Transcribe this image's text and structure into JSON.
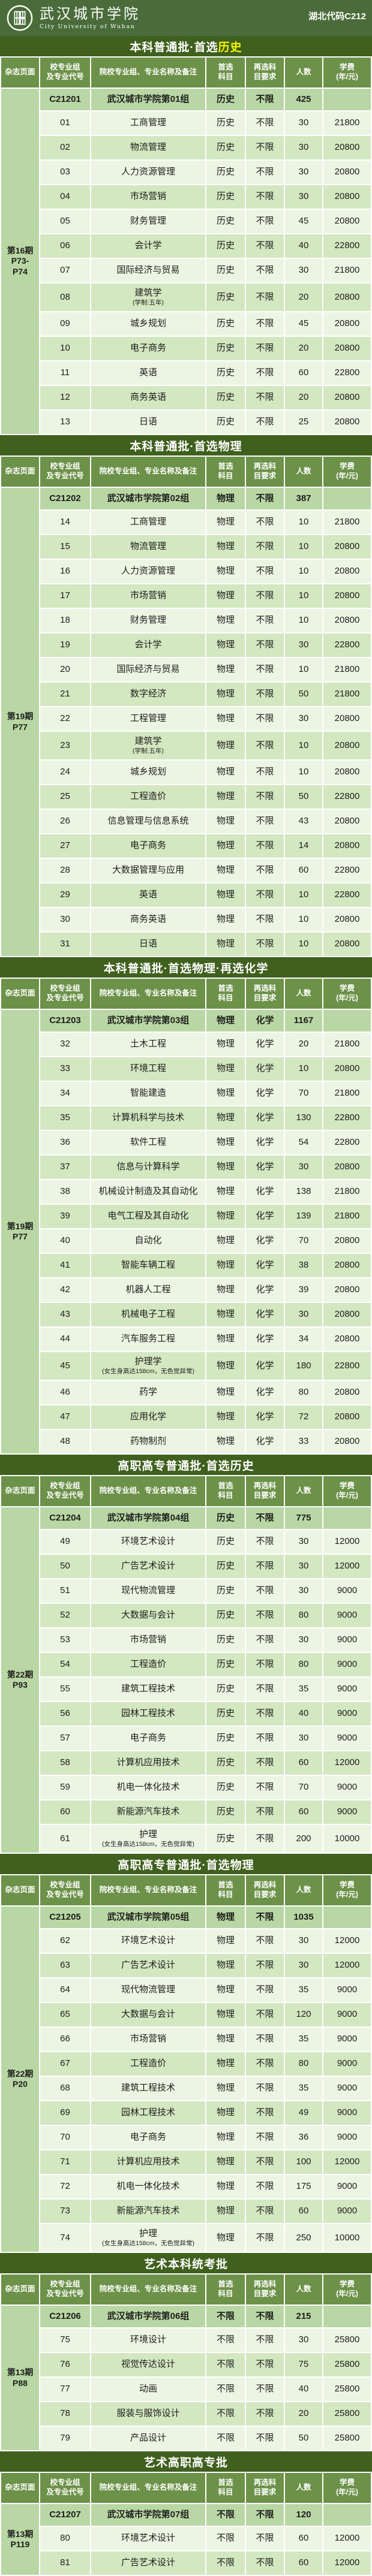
{
  "colors": {
    "banner": "#4a6c3a",
    "section_bar": "#40601e",
    "table_header": "#6c9148",
    "group_row": "#b9d7a4",
    "row_light": "#ecf5e3",
    "row_dark": "#d3e7c1",
    "highlight": "#f5f500"
  },
  "header": {
    "university_cn": "武汉城市学院",
    "university_en": "City University of Wuhan",
    "province_code": "湖北代码C212"
  },
  "columns": {
    "magazine": "杂志页面",
    "group_code": "校专业组\n及专业代号",
    "major_name": "院校专业组、专业名称及备注",
    "first_subject": "首选\n科目",
    "second_subject": "再选科\n目要求",
    "count": "人数",
    "fee": "学费\n(年/元)"
  },
  "sections": [
    {
      "title": "本科普通批·首选",
      "title_highlight": "历史",
      "magazine": "第16期\nP73-\nP74",
      "group": {
        "code": "C21201",
        "name": "武汉城市学院第01组",
        "subject": "历史",
        "resubject": "不限",
        "count": "425",
        "fee": ""
      },
      "rows": [
        {
          "code": "01",
          "name": "工商管理",
          "note": "",
          "subject": "历史",
          "resubject": "不限",
          "count": "30",
          "fee": "21800"
        },
        {
          "code": "02",
          "name": "物流管理",
          "note": "",
          "subject": "历史",
          "resubject": "不限",
          "count": "30",
          "fee": "20800"
        },
        {
          "code": "03",
          "name": "人力资源管理",
          "note": "",
          "subject": "历史",
          "resubject": "不限",
          "count": "30",
          "fee": "20800"
        },
        {
          "code": "04",
          "name": "市场营销",
          "note": "",
          "subject": "历史",
          "resubject": "不限",
          "count": "30",
          "fee": "20800"
        },
        {
          "code": "05",
          "name": "财务管理",
          "note": "",
          "subject": "历史",
          "resubject": "不限",
          "count": "45",
          "fee": "20800"
        },
        {
          "code": "06",
          "name": "会计学",
          "note": "",
          "subject": "历史",
          "resubject": "不限",
          "count": "40",
          "fee": "22800"
        },
        {
          "code": "07",
          "name": "国际经济与贸易",
          "note": "",
          "subject": "历史",
          "resubject": "不限",
          "count": "30",
          "fee": "21800"
        },
        {
          "code": "08",
          "name": "建筑学",
          "note": "(学制:五年)",
          "subject": "历史",
          "resubject": "不限",
          "count": "20",
          "fee": "20800"
        },
        {
          "code": "09",
          "name": "城乡规划",
          "note": "",
          "subject": "历史",
          "resubject": "不限",
          "count": "45",
          "fee": "20800"
        },
        {
          "code": "10",
          "name": "电子商务",
          "note": "",
          "subject": "历史",
          "resubject": "不限",
          "count": "20",
          "fee": "20800"
        },
        {
          "code": "11",
          "name": "英语",
          "note": "",
          "subject": "历史",
          "resubject": "不限",
          "count": "60",
          "fee": "22800"
        },
        {
          "code": "12",
          "name": "商务英语",
          "note": "",
          "subject": "历史",
          "resubject": "不限",
          "count": "20",
          "fee": "20800"
        },
        {
          "code": "13",
          "name": "日语",
          "note": "",
          "subject": "历史",
          "resubject": "不限",
          "count": "25",
          "fee": "20800"
        }
      ]
    },
    {
      "title": "本科普通批·首选物理",
      "title_highlight": "",
      "magazine": "第19期\nP77",
      "group": {
        "code": "C21202",
        "name": "武汉城市学院第02组",
        "subject": "物理",
        "resubject": "不限",
        "count": "387",
        "fee": ""
      },
      "rows": [
        {
          "code": "14",
          "name": "工商管理",
          "note": "",
          "subject": "物理",
          "resubject": "不限",
          "count": "10",
          "fee": "21800"
        },
        {
          "code": "15",
          "name": "物流管理",
          "note": "",
          "subject": "物理",
          "resubject": "不限",
          "count": "10",
          "fee": "20800"
        },
        {
          "code": "16",
          "name": "人力资源管理",
          "note": "",
          "subject": "物理",
          "resubject": "不限",
          "count": "10",
          "fee": "20800"
        },
        {
          "code": "17",
          "name": "市场营销",
          "note": "",
          "subject": "物理",
          "resubject": "不限",
          "count": "10",
          "fee": "20800"
        },
        {
          "code": "18",
          "name": "财务管理",
          "note": "",
          "subject": "物理",
          "resubject": "不限",
          "count": "10",
          "fee": "20800"
        },
        {
          "code": "19",
          "name": "会计学",
          "note": "",
          "subject": "物理",
          "resubject": "不限",
          "count": "30",
          "fee": "22800"
        },
        {
          "code": "20",
          "name": "国际经济与贸易",
          "note": "",
          "subject": "物理",
          "resubject": "不限",
          "count": "10",
          "fee": "21800"
        },
        {
          "code": "21",
          "name": "数字经济",
          "note": "",
          "subject": "物理",
          "resubject": "不限",
          "count": "50",
          "fee": "21800"
        },
        {
          "code": "22",
          "name": "工程管理",
          "note": "",
          "subject": "物理",
          "resubject": "不限",
          "count": "30",
          "fee": "20800"
        },
        {
          "code": "23",
          "name": "建筑学",
          "note": "(学制:五年)",
          "subject": "物理",
          "resubject": "不限",
          "count": "10",
          "fee": "20800"
        },
        {
          "code": "24",
          "name": "城乡规划",
          "note": "",
          "subject": "物理",
          "resubject": "不限",
          "count": "10",
          "fee": "20800"
        },
        {
          "code": "25",
          "name": "工程造价",
          "note": "",
          "subject": "物理",
          "resubject": "不限",
          "count": "50",
          "fee": "22800"
        },
        {
          "code": "26",
          "name": "信息管理与信息系统",
          "note": "",
          "subject": "物理",
          "resubject": "不限",
          "count": "43",
          "fee": "20800"
        },
        {
          "code": "27",
          "name": "电子商务",
          "note": "",
          "subject": "物理",
          "resubject": "不限",
          "count": "14",
          "fee": "20800"
        },
        {
          "code": "28",
          "name": "大数据管理与应用",
          "note": "",
          "subject": "物理",
          "resubject": "不限",
          "count": "60",
          "fee": "22800"
        },
        {
          "code": "29",
          "name": "英语",
          "note": "",
          "subject": "物理",
          "resubject": "不限",
          "count": "10",
          "fee": "22800"
        },
        {
          "code": "30",
          "name": "商务英语",
          "note": "",
          "subject": "物理",
          "resubject": "不限",
          "count": "10",
          "fee": "20800"
        },
        {
          "code": "31",
          "name": "日语",
          "note": "",
          "subject": "物理",
          "resubject": "不限",
          "count": "10",
          "fee": "20800"
        }
      ]
    },
    {
      "title": "本科普通批·首选物理·再选化学",
      "title_highlight": "",
      "magazine": "第19期\nP77",
      "group": {
        "code": "C21203",
        "name": "武汉城市学院第03组",
        "subject": "物理",
        "resubject": "化学",
        "count": "1167",
        "fee": ""
      },
      "rows": [
        {
          "code": "32",
          "name": "土木工程",
          "note": "",
          "subject": "物理",
          "resubject": "化学",
          "count": "20",
          "fee": "21800"
        },
        {
          "code": "33",
          "name": "环境工程",
          "note": "",
          "subject": "物理",
          "resubject": "化学",
          "count": "10",
          "fee": "20800"
        },
        {
          "code": "34",
          "name": "智能建造",
          "note": "",
          "subject": "物理",
          "resubject": "化学",
          "count": "70",
          "fee": "21800"
        },
        {
          "code": "35",
          "name": "计算机科学与技术",
          "note": "",
          "subject": "物理",
          "resubject": "化学",
          "count": "130",
          "fee": "22800"
        },
        {
          "code": "36",
          "name": "软件工程",
          "note": "",
          "subject": "物理",
          "resubject": "化学",
          "count": "54",
          "fee": "22800"
        },
        {
          "code": "37",
          "name": "信息与计算科学",
          "note": "",
          "subject": "物理",
          "resubject": "化学",
          "count": "30",
          "fee": "20800"
        },
        {
          "code": "38",
          "name": "机械设计制造及其自动化",
          "note": "",
          "subject": "物理",
          "resubject": "化学",
          "count": "138",
          "fee": "21800"
        },
        {
          "code": "39",
          "name": "电气工程及其自动化",
          "note": "",
          "subject": "物理",
          "resubject": "化学",
          "count": "139",
          "fee": "21800"
        },
        {
          "code": "40",
          "name": "自动化",
          "note": "",
          "subject": "物理",
          "resubject": "化学",
          "count": "70",
          "fee": "20800"
        },
        {
          "code": "41",
          "name": "智能车辆工程",
          "note": "",
          "subject": "物理",
          "resubject": "化学",
          "count": "38",
          "fee": "20800"
        },
        {
          "code": "42",
          "name": "机器人工程",
          "note": "",
          "subject": "物理",
          "resubject": "化学",
          "count": "39",
          "fee": "20800"
        },
        {
          "code": "43",
          "name": "机械电子工程",
          "note": "",
          "subject": "物理",
          "resubject": "化学",
          "count": "30",
          "fee": "20800"
        },
        {
          "code": "44",
          "name": "汽车服务工程",
          "note": "",
          "subject": "物理",
          "resubject": "化学",
          "count": "34",
          "fee": "20800"
        },
        {
          "code": "45",
          "name": "护理学",
          "note": "(女生身高达158cm，无色觉异常)",
          "subject": "物理",
          "resubject": "化学",
          "count": "180",
          "fee": "22800"
        },
        {
          "code": "46",
          "name": "药学",
          "note": "",
          "subject": "物理",
          "resubject": "化学",
          "count": "80",
          "fee": "20800"
        },
        {
          "code": "47",
          "name": "应用化学",
          "note": "",
          "subject": "物理",
          "resubject": "化学",
          "count": "72",
          "fee": "20800"
        },
        {
          "code": "48",
          "name": "药物制剂",
          "note": "",
          "subject": "物理",
          "resubject": "化学",
          "count": "33",
          "fee": "20800"
        }
      ]
    },
    {
      "title": "高职高专普通批·首选历史",
      "title_highlight": "",
      "magazine": "第22期\nP93",
      "group": {
        "code": "C21204",
        "name": "武汉城市学院第04组",
        "subject": "历史",
        "resubject": "不限",
        "count": "775",
        "fee": ""
      },
      "rows": [
        {
          "code": "49",
          "name": "环境艺术设计",
          "note": "",
          "subject": "历史",
          "resubject": "不限",
          "count": "30",
          "fee": "12000"
        },
        {
          "code": "50",
          "name": "广告艺术设计",
          "note": "",
          "subject": "历史",
          "resubject": "不限",
          "count": "30",
          "fee": "12000"
        },
        {
          "code": "51",
          "name": "现代物流管理",
          "note": "",
          "subject": "历史",
          "resubject": "不限",
          "count": "30",
          "fee": "9000"
        },
        {
          "code": "52",
          "name": "大数据与会计",
          "note": "",
          "subject": "历史",
          "resubject": "不限",
          "count": "80",
          "fee": "9000"
        },
        {
          "code": "53",
          "name": "市场营销",
          "note": "",
          "subject": "历史",
          "resubject": "不限",
          "count": "30",
          "fee": "9000"
        },
        {
          "code": "54",
          "name": "工程造价",
          "note": "",
          "subject": "历史",
          "resubject": "不限",
          "count": "80",
          "fee": "9000"
        },
        {
          "code": "55",
          "name": "建筑工程技术",
          "note": "",
          "subject": "历史",
          "resubject": "不限",
          "count": "35",
          "fee": "9000"
        },
        {
          "code": "56",
          "name": "园林工程技术",
          "note": "",
          "subject": "历史",
          "resubject": "不限",
          "count": "40",
          "fee": "9000"
        },
        {
          "code": "57",
          "name": "电子商务",
          "note": "",
          "subject": "历史",
          "resubject": "不限",
          "count": "30",
          "fee": "9000"
        },
        {
          "code": "58",
          "name": "计算机应用技术",
          "note": "",
          "subject": "历史",
          "resubject": "不限",
          "count": "60",
          "fee": "12000"
        },
        {
          "code": "59",
          "name": "机电一体化技术",
          "note": "",
          "subject": "历史",
          "resubject": "不限",
          "count": "70",
          "fee": "9000"
        },
        {
          "code": "60",
          "name": "新能源汽车技术",
          "note": "",
          "subject": "历史",
          "resubject": "不限",
          "count": "60",
          "fee": "9000"
        },
        {
          "code": "61",
          "name": "护理",
          "note": "(女生身高达158cm，无色觉异常)",
          "subject": "历史",
          "resubject": "不限",
          "count": "200",
          "fee": "10000"
        }
      ]
    },
    {
      "title": "高职高专普通批·首选物理",
      "title_highlight": "",
      "magazine": "第22期\nP20",
      "group": {
        "code": "C21205",
        "name": "武汉城市学院第05组",
        "subject": "物理",
        "resubject": "不限",
        "count": "1035",
        "fee": ""
      },
      "rows": [
        {
          "code": "62",
          "name": "环境艺术设计",
          "note": "",
          "subject": "物理",
          "resubject": "不限",
          "count": "30",
          "fee": "12000"
        },
        {
          "code": "63",
          "name": "广告艺术设计",
          "note": "",
          "subject": "物理",
          "resubject": "不限",
          "count": "30",
          "fee": "12000"
        },
        {
          "code": "64",
          "name": "现代物流管理",
          "note": "",
          "subject": "物理",
          "resubject": "不限",
          "count": "35",
          "fee": "9000"
        },
        {
          "code": "65",
          "name": "大数据与会计",
          "note": "",
          "subject": "物理",
          "resubject": "不限",
          "count": "120",
          "fee": "9000"
        },
        {
          "code": "66",
          "name": "市场营销",
          "note": "",
          "subject": "物理",
          "resubject": "不限",
          "count": "35",
          "fee": "9000"
        },
        {
          "code": "67",
          "name": "工程造价",
          "note": "",
          "subject": "物理",
          "resubject": "不限",
          "count": "80",
          "fee": "9000"
        },
        {
          "code": "68",
          "name": "建筑工程技术",
          "note": "",
          "subject": "物理",
          "resubject": "不限",
          "count": "35",
          "fee": "9000"
        },
        {
          "code": "69",
          "name": "园林工程技术",
          "note": "",
          "subject": "物理",
          "resubject": "不限",
          "count": "49",
          "fee": "9000"
        },
        {
          "code": "70",
          "name": "电子商务",
          "note": "",
          "subject": "物理",
          "resubject": "不限",
          "count": "36",
          "fee": "9000"
        },
        {
          "code": "71",
          "name": "计算机应用技术",
          "note": "",
          "subject": "物理",
          "resubject": "不限",
          "count": "100",
          "fee": "12000"
        },
        {
          "code": "72",
          "name": "机电一体化技术",
          "note": "",
          "subject": "物理",
          "resubject": "不限",
          "count": "175",
          "fee": "9000"
        },
        {
          "code": "73",
          "name": "新能源汽车技术",
          "note": "",
          "subject": "物理",
          "resubject": "不限",
          "count": "60",
          "fee": "9000"
        },
        {
          "code": "74",
          "name": "护理",
          "note": "(女生身高达158cm，无色觉异常)",
          "subject": "物理",
          "resubject": "不限",
          "count": "250",
          "fee": "10000"
        }
      ]
    },
    {
      "title": "艺术本科统考批",
      "title_highlight": "",
      "magazine": "第13期\nP88",
      "group": {
        "code": "C21206",
        "name": "武汉城市学院第06组",
        "subject": "不限",
        "resubject": "不限",
        "count": "215",
        "fee": ""
      },
      "rows": [
        {
          "code": "75",
          "name": "环境设计",
          "note": "",
          "subject": "不限",
          "resubject": "不限",
          "count": "30",
          "fee": "25800"
        },
        {
          "code": "76",
          "name": "视觉传达设计",
          "note": "",
          "subject": "不限",
          "resubject": "不限",
          "count": "75",
          "fee": "25800"
        },
        {
          "code": "77",
          "name": "动画",
          "note": "",
          "subject": "不限",
          "resubject": "不限",
          "count": "40",
          "fee": "25800"
        },
        {
          "code": "78",
          "name": "服装与服饰设计",
          "note": "",
          "subject": "不限",
          "resubject": "不限",
          "count": "20",
          "fee": "25800"
        },
        {
          "code": "79",
          "name": "产品设计",
          "note": "",
          "subject": "不限",
          "resubject": "不限",
          "count": "50",
          "fee": "25800"
        }
      ]
    },
    {
      "title": "艺术高职高专批",
      "title_highlight": "",
      "magazine": "第13期\nP119",
      "group": {
        "code": "C21207",
        "name": "武汉城市学院第07组",
        "subject": "不限",
        "resubject": "不限",
        "count": "120",
        "fee": ""
      },
      "rows": [
        {
          "code": "80",
          "name": "环境艺术设计",
          "note": "",
          "subject": "不限",
          "resubject": "不限",
          "count": "60",
          "fee": "12000"
        },
        {
          "code": "81",
          "name": "广告艺术设计",
          "note": "",
          "subject": "不限",
          "resubject": "不限",
          "count": "60",
          "fee": "12000"
        }
      ]
    }
  ]
}
